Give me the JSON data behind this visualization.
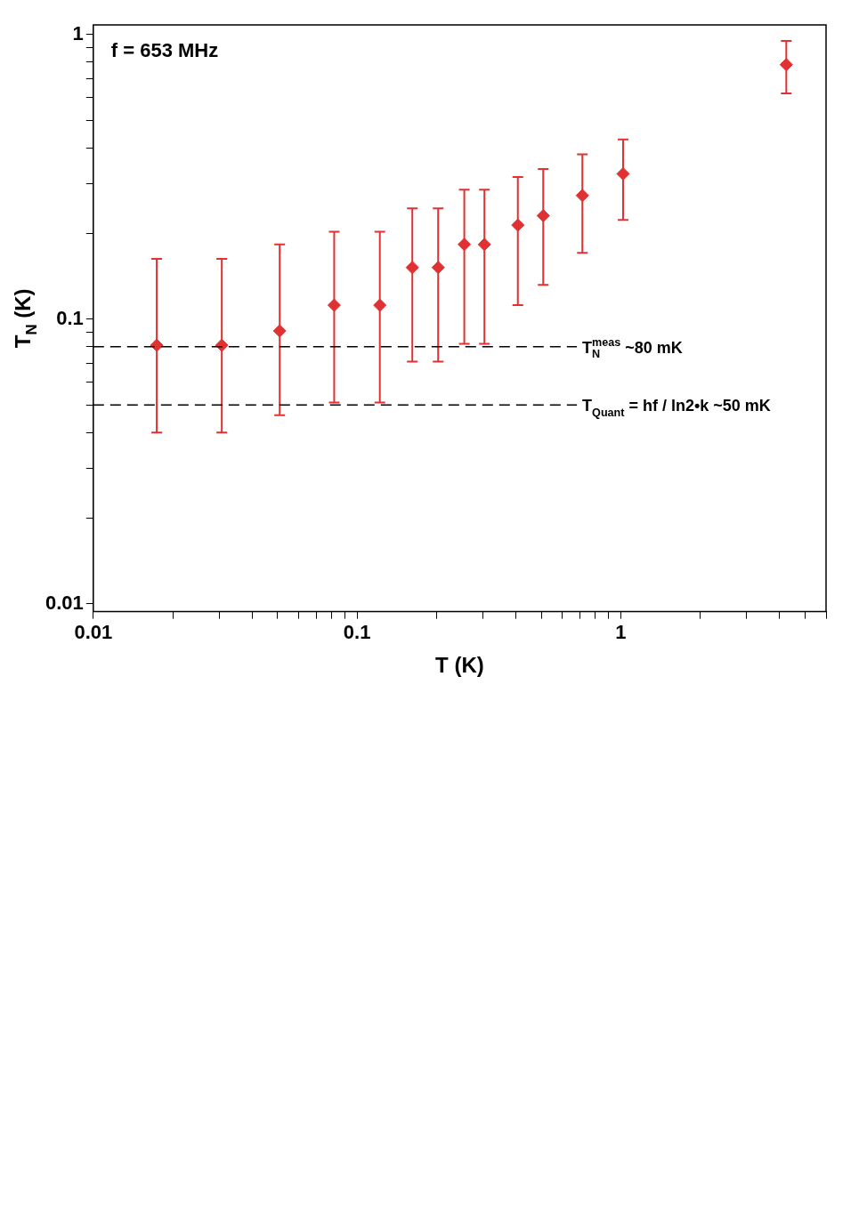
{
  "chart_data": {
    "type": "scatter",
    "xlabel": "T (K)",
    "ylabel": "T$_{N}$ (K)",
    "x": [
      0.0174,
      0.0307,
      0.0509,
      0.0819,
      0.122,
      0.162,
      0.203,
      0.255,
      0.304,
      0.407,
      0.508,
      0.715,
      1.02,
      4.24
    ],
    "series": [
      {
        "color": "#e03232",
        "values": [
          0.081,
          0.081,
          0.091,
          0.112,
          0.112,
          0.152,
          0.152,
          0.183,
          0.183,
          0.214,
          0.231,
          0.272,
          0.324,
          0.783
        ],
        "errors": [
          [
            0.04,
            0.163
          ],
          [
            0.04,
            0.163
          ],
          [
            0.046,
            0.183
          ],
          [
            0.051,
            0.203
          ],
          [
            0.051,
            0.203
          ],
          [
            0.071,
            0.245
          ],
          [
            0.071,
            0.245
          ],
          [
            0.082,
            0.285
          ],
          [
            0.082,
            0.285
          ],
          [
            0.112,
            0.316
          ],
          [
            0.132,
            0.337
          ],
          [
            0.171,
            0.379
          ],
          [
            0.223,
            0.428
          ],
          [
            0.621,
            0.949
          ]
        ]
      }
    ],
    "marker": "diamond",
    "log": "xy",
    "grid": false,
    "legend": false,
    "xlim": [
      0.01,
      6
    ],
    "ylim": [
      0.0094,
      1.08
    ],
    "xticks": [
      0.01,
      {
        "value": 0.02,
        "label": null
      },
      {
        "value": 0.03,
        "label": null
      },
      {
        "value": 0.04,
        "label": null
      },
      {
        "value": 0.05,
        "label": null
      },
      {
        "value": 0.06,
        "label": null
      },
      {
        "value": 0.07,
        "label": null
      },
      {
        "value": 0.08,
        "label": null
      },
      {
        "value": 0.09,
        "label": null
      },
      0.1,
      {
        "value": 0.2,
        "label": null
      },
      {
        "value": 0.3,
        "label": null
      },
      {
        "value": 0.4,
        "label": null
      },
      {
        "value": 0.5,
        "label": null
      },
      {
        "value": 0.6,
        "label": null
      },
      {
        "value": 0.7,
        "label": null
      },
      {
        "value": 0.8,
        "label": null
      },
      {
        "value": 0.9,
        "label": null
      },
      1,
      {
        "value": 2,
        "label": null
      },
      {
        "value": 3,
        "label": null
      },
      {
        "value": 4,
        "label": null
      },
      {
        "value": 5,
        "label": null
      },
      {
        "value": 6,
        "label": null
      }
    ],
    "yticks": [
      0.01,
      {
        "value": 0.02,
        "label": null
      },
      {
        "value": 0.03,
        "label": null
      },
      {
        "value": 0.04,
        "label": null
      },
      {
        "value": 0.05,
        "label": null
      },
      {
        "value": 0.06,
        "label": null
      },
      {
        "value": 0.07,
        "label": null
      },
      {
        "value": 0.08,
        "label": null
      },
      {
        "value": 0.09,
        "label": null
      },
      0.1,
      {
        "value": 0.2,
        "label": null
      },
      {
        "value": 0.3,
        "label": null
      },
      {
        "value": 0.4,
        "label": null
      },
      {
        "value": 0.5,
        "label": null
      },
      {
        "value": 0.6,
        "label": null
      },
      {
        "value": 0.7,
        "label": null
      },
      {
        "value": 0.8,
        "label": null
      },
      {
        "value": 0.9,
        "label": null
      },
      1
    ],
    "ref_lines": [
      {
        "axis": "y",
        "value": 0.08,
        "label": "T$_{N}$$^{meas}$ ~80 mK",
        "color": "#000000",
        "line_style": "dashed"
      },
      {
        "axis": "y",
        "value": 0.05,
        "label": "T$_{Quant}$ = hf / ln2•k ~50 mK",
        "color": "#000000",
        "line_style": "dashed"
      }
    ],
    "annotations": [
      "f = 653 MHz"
    ]
  }
}
